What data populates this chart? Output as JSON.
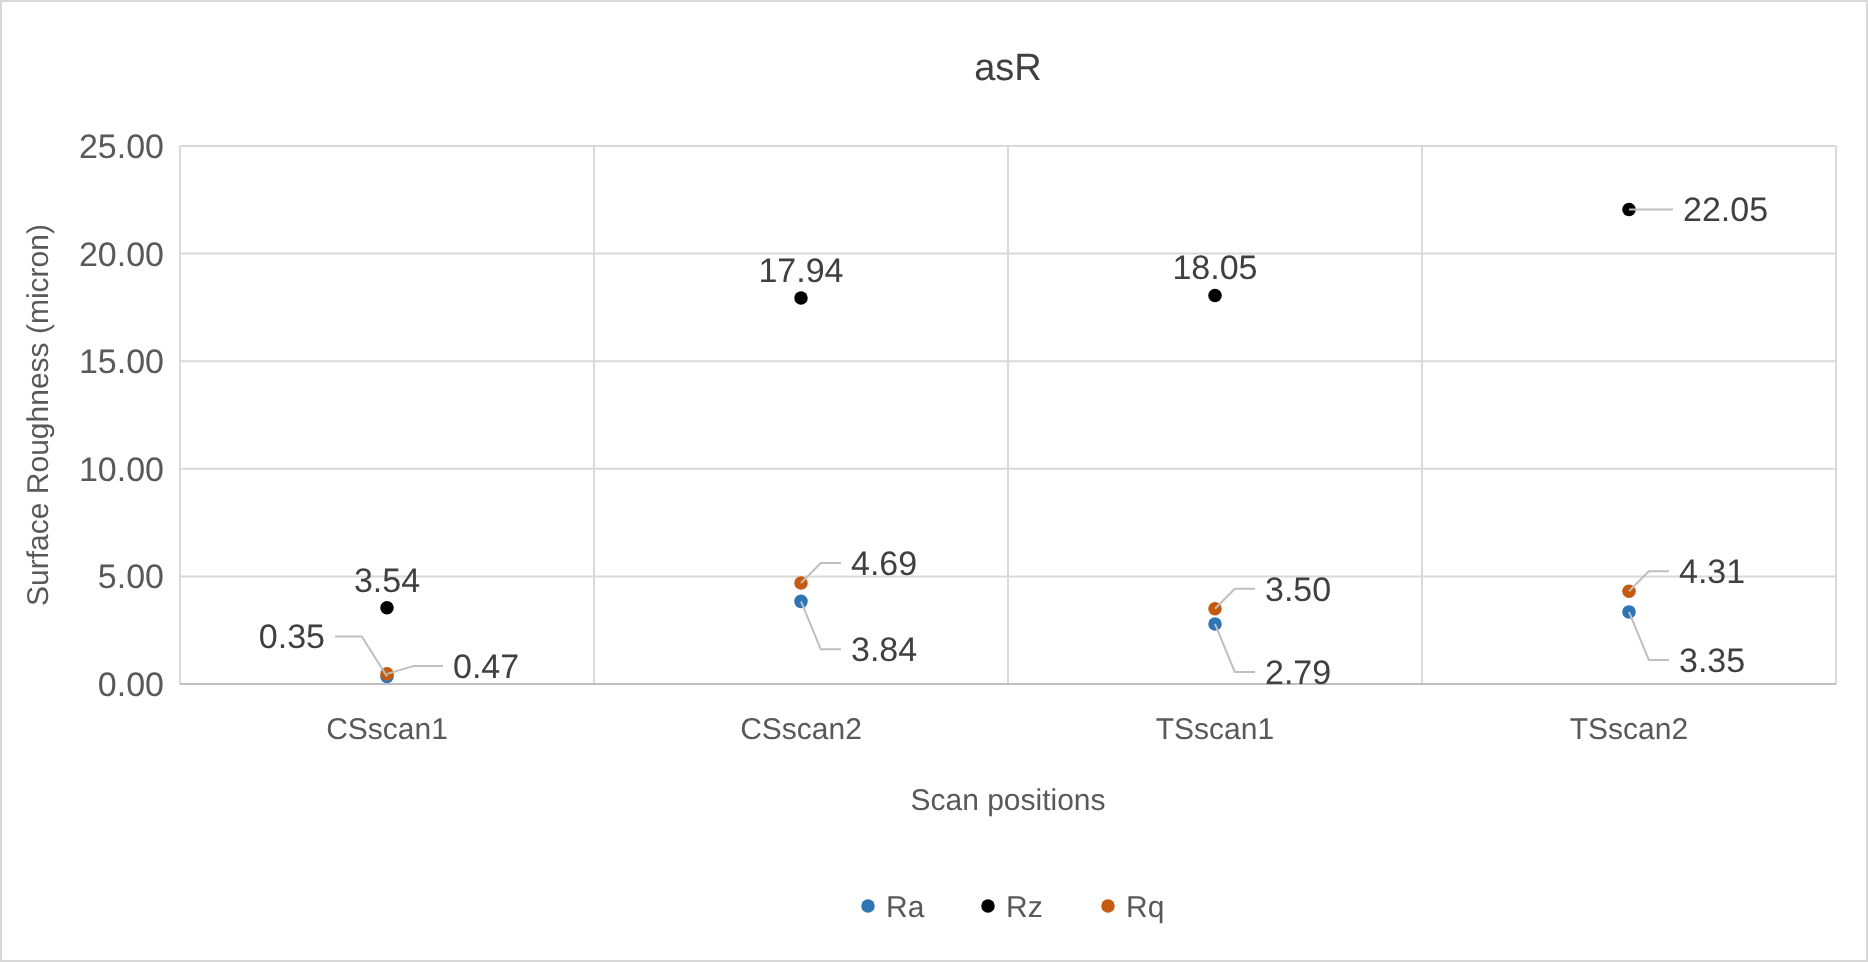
{
  "chart_data": {
    "type": "scatter",
    "title": "asR",
    "xlabel": "Scan positions",
    "ylabel": "Surface Roughness (micron)",
    "categories": [
      "CSscan1",
      "CSscan2",
      "TSscan1",
      "TSscan2"
    ],
    "series": [
      {
        "name": "Ra",
        "color": "#2e75b6",
        "values": [
          0.35,
          3.84,
          2.79,
          3.35
        ],
        "value_labels": [
          "0.35",
          "3.84",
          "2.79",
          "3.35"
        ]
      },
      {
        "name": "Rz",
        "color": "#000000",
        "values": [
          3.54,
          17.94,
          18.05,
          22.05
        ],
        "value_labels": [
          "3.54",
          "17.94",
          "18.05",
          "22.05"
        ]
      },
      {
        "name": "Rq",
        "color": "#c55a11",
        "values": [
          0.47,
          4.69,
          3.5,
          4.31
        ],
        "value_labels": [
          "0.47",
          "4.69",
          "3.50",
          "4.31"
        ]
      }
    ],
    "ylim": [
      0,
      25
    ],
    "yticks": [
      {
        "value": 0,
        "label": "0.00"
      },
      {
        "value": 5,
        "label": "5.00"
      },
      {
        "value": 10,
        "label": "10.00"
      },
      {
        "value": 15,
        "label": "15.00"
      },
      {
        "value": 20,
        "label": "20.00"
      },
      {
        "value": 25,
        "label": "25.00"
      }
    ],
    "grid": true,
    "legend": "bottom",
    "marker": "circle"
  }
}
